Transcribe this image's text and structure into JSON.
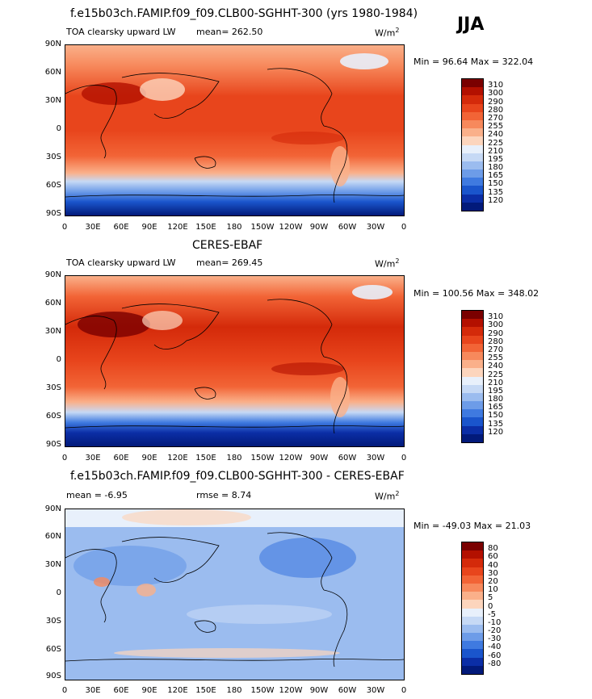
{
  "season": "JJA",
  "panels": [
    {
      "title": "f.e15b03ch.FAMIP.f09_f09.CLB00-SGHHT-300 (yrs 1980-1984)",
      "left_label": "TOA clearsky upward LW",
      "mean_label": "mean= 262.50",
      "units": "W/m",
      "units_sup": "2",
      "minmax": "Min = 96.64 Max = 322.04",
      "colorbar": {
        "labels": [
          "310",
          "300",
          "290",
          "280",
          "270",
          "255",
          "240",
          "225",
          "210",
          "195",
          "180",
          "165",
          "150",
          "135",
          "120"
        ],
        "colors": [
          "#7a0000",
          "#b31000",
          "#d42a0a",
          "#e8451c",
          "#f26436",
          "#f7895c",
          "#fab08a",
          "#fcd5bd",
          "#e8f0fb",
          "#c6d9f5",
          "#9bbcef",
          "#6d9ce8",
          "#3f7ae0",
          "#1a55cc",
          "#0b2ea6",
          "#021a7a"
        ]
      }
    },
    {
      "title": "CERES-EBAF",
      "left_label": "TOA clearsky upward LW",
      "mean_label": "mean= 269.45",
      "units": "W/m",
      "units_sup": "2",
      "minmax": "Min = 100.56 Max = 348.02",
      "colorbar": {
        "labels": [
          "310",
          "300",
          "290",
          "280",
          "270",
          "255",
          "240",
          "225",
          "210",
          "195",
          "180",
          "165",
          "150",
          "135",
          "120"
        ],
        "colors": [
          "#7a0000",
          "#b31000",
          "#d42a0a",
          "#e8451c",
          "#f26436",
          "#f7895c",
          "#fab08a",
          "#fcd5bd",
          "#e8f0fb",
          "#c6d9f5",
          "#9bbcef",
          "#6d9ce8",
          "#3f7ae0",
          "#1a55cc",
          "#0b2ea6",
          "#021a7a"
        ]
      }
    },
    {
      "title": "f.e15b03ch.FAMIP.f09_f09.CLB00-SGHHT-300 - CERES-EBAF",
      "left_label": "mean =   -6.95",
      "mean_label": "rmse =    8.74",
      "units": "W/m",
      "units_sup": "2",
      "minmax": "Min = -49.03 Max =  21.03",
      "colorbar": {
        "labels": [
          "80",
          "60",
          "40",
          "30",
          "20",
          "10",
          "5",
          "0",
          "-5",
          "-10",
          "-20",
          "-30",
          "-40",
          "-60",
          "-80"
        ],
        "colors": [
          "#7a0000",
          "#b31000",
          "#d42a0a",
          "#e8451c",
          "#f26436",
          "#f7895c",
          "#fab08a",
          "#fcd5bd",
          "#e8f0fb",
          "#c6d9f5",
          "#9bbcef",
          "#6d9ce8",
          "#3f7ae0",
          "#1a55cc",
          "#0b2ea6",
          "#021a7a"
        ]
      }
    }
  ],
  "lat_labels": [
    "90N",
    "60N",
    "30N",
    "0",
    "30S",
    "60S",
    "90S"
  ],
  "lon_labels": [
    "0",
    "30E",
    "60E",
    "90E",
    "120E",
    "150E",
    "180",
    "150W",
    "120W",
    "90W",
    "60W",
    "30W",
    "0"
  ]
}
